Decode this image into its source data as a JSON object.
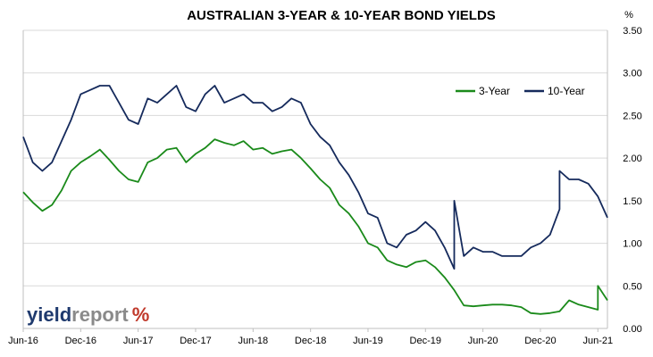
{
  "chart_data": {
    "type": "line",
    "title": "AUSTRALIAN 3-YEAR & 10-YEAR BOND YIELDS",
    "y_unit": "%",
    "ylim": [
      0,
      3.5
    ],
    "y_ticks": [
      "0.00",
      "0.50",
      "1.00",
      "1.50",
      "2.00",
      "2.50",
      "3.00",
      "3.50"
    ],
    "y_axis_side": "right",
    "grid": "horizontal",
    "xlim": [
      "2016-06",
      "2021-07"
    ],
    "x_ticks": [
      {
        "date": "2016-06",
        "label": "Jun-16"
      },
      {
        "date": "2016-12",
        "label": "Dec-16"
      },
      {
        "date": "2017-06",
        "label": "Jun-17"
      },
      {
        "date": "2017-12",
        "label": "Dec-17"
      },
      {
        "date": "2018-06",
        "label": "Jun-18"
      },
      {
        "date": "2018-12",
        "label": "Dec-18"
      },
      {
        "date": "2019-06",
        "label": "Jun-19"
      },
      {
        "date": "2019-12",
        "label": "Dec-19"
      },
      {
        "date": "2020-06",
        "label": "Jun-20"
      },
      {
        "date": "2020-12",
        "label": "Dec-20"
      },
      {
        "date": "2021-06",
        "label": "Jun-21"
      }
    ],
    "legend_position": "top-right",
    "series": [
      {
        "name": "3-Year",
        "color": "#1a8a1a",
        "points": [
          [
            "2016-06",
            1.6
          ],
          [
            "2016-07",
            1.48
          ],
          [
            "2016-08",
            1.38
          ],
          [
            "2016-09",
            1.45
          ],
          [
            "2016-10",
            1.62
          ],
          [
            "2016-11",
            1.85
          ],
          [
            "2016-12",
            1.95
          ],
          [
            "2017-01",
            2.02
          ],
          [
            "2017-02",
            2.1
          ],
          [
            "2017-03",
            1.98
          ],
          [
            "2017-04",
            1.85
          ],
          [
            "2017-05",
            1.75
          ],
          [
            "2017-06",
            1.72
          ],
          [
            "2017-07",
            1.95
          ],
          [
            "2017-08",
            2.0
          ],
          [
            "2017-09",
            2.1
          ],
          [
            "2017-10",
            2.12
          ],
          [
            "2017-11",
            1.95
          ],
          [
            "2017-12",
            2.05
          ],
          [
            "2018-01",
            2.12
          ],
          [
            "2018-02",
            2.22
          ],
          [
            "2018-03",
            2.18
          ],
          [
            "2018-04",
            2.15
          ],
          [
            "2018-05",
            2.2
          ],
          [
            "2018-06",
            2.1
          ],
          [
            "2018-07",
            2.12
          ],
          [
            "2018-08",
            2.05
          ],
          [
            "2018-09",
            2.08
          ],
          [
            "2018-10",
            2.1
          ],
          [
            "2018-11",
            2.0
          ],
          [
            "2018-12",
            1.88
          ],
          [
            "2019-01",
            1.75
          ],
          [
            "2019-02",
            1.65
          ],
          [
            "2019-03",
            1.45
          ],
          [
            "2019-04",
            1.35
          ],
          [
            "2019-05",
            1.2
          ],
          [
            "2019-06",
            1.0
          ],
          [
            "2019-07",
            0.95
          ],
          [
            "2019-08",
            0.8
          ],
          [
            "2019-09",
            0.75
          ],
          [
            "2019-10",
            0.72
          ],
          [
            "2019-11",
            0.78
          ],
          [
            "2019-12",
            0.8
          ],
          [
            "2020-01",
            0.72
          ],
          [
            "2020-02",
            0.6
          ],
          [
            "2020-03",
            0.45
          ],
          [
            "2020-04",
            0.27
          ],
          [
            "2020-05",
            0.26
          ],
          [
            "2020-06",
            0.27
          ],
          [
            "2020-07",
            0.28
          ],
          [
            "2020-08",
            0.28
          ],
          [
            "2020-09",
            0.27
          ],
          [
            "2020-10",
            0.25
          ],
          [
            "2020-11",
            0.18
          ],
          [
            "2020-12",
            0.17
          ],
          [
            "2021-01",
            0.18
          ],
          [
            "2021-02",
            0.2
          ],
          [
            "2021-03",
            0.33
          ],
          [
            "2021-04",
            0.28
          ],
          [
            "2021-05",
            0.25
          ],
          [
            "2021-06",
            0.22
          ],
          [
            "2021-06",
            0.5
          ],
          [
            "2021-07",
            0.33
          ]
        ]
      },
      {
        "name": "10-Year",
        "color": "#152a5c",
        "points": [
          [
            "2016-06",
            2.25
          ],
          [
            "2016-07",
            1.95
          ],
          [
            "2016-08",
            1.85
          ],
          [
            "2016-09",
            1.95
          ],
          [
            "2016-10",
            2.2
          ],
          [
            "2016-11",
            2.45
          ],
          [
            "2016-12",
            2.75
          ],
          [
            "2017-01",
            2.8
          ],
          [
            "2017-02",
            2.85
          ],
          [
            "2017-03",
            2.85
          ],
          [
            "2017-04",
            2.65
          ],
          [
            "2017-05",
            2.45
          ],
          [
            "2017-06",
            2.4
          ],
          [
            "2017-07",
            2.7
          ],
          [
            "2017-08",
            2.65
          ],
          [
            "2017-09",
            2.75
          ],
          [
            "2017-10",
            2.85
          ],
          [
            "2017-11",
            2.6
          ],
          [
            "2017-12",
            2.55
          ],
          [
            "2018-01",
            2.75
          ],
          [
            "2018-02",
            2.85
          ],
          [
            "2018-03",
            2.65
          ],
          [
            "2018-04",
            2.7
          ],
          [
            "2018-05",
            2.75
          ],
          [
            "2018-06",
            2.65
          ],
          [
            "2018-07",
            2.65
          ],
          [
            "2018-08",
            2.55
          ],
          [
            "2018-09",
            2.6
          ],
          [
            "2018-10",
            2.7
          ],
          [
            "2018-11",
            2.65
          ],
          [
            "2018-12",
            2.4
          ],
          [
            "2019-01",
            2.25
          ],
          [
            "2019-02",
            2.15
          ],
          [
            "2019-03",
            1.95
          ],
          [
            "2019-04",
            1.8
          ],
          [
            "2019-05",
            1.6
          ],
          [
            "2019-06",
            1.35
          ],
          [
            "2019-07",
            1.3
          ],
          [
            "2019-08",
            1.0
          ],
          [
            "2019-09",
            0.95
          ],
          [
            "2019-10",
            1.1
          ],
          [
            "2019-11",
            1.15
          ],
          [
            "2019-12",
            1.25
          ],
          [
            "2020-01",
            1.15
          ],
          [
            "2020-02",
            0.95
          ],
          [
            "2020-03",
            0.7
          ],
          [
            "2020-03",
            1.5
          ],
          [
            "2020-04",
            0.85
          ],
          [
            "2020-05",
            0.95
          ],
          [
            "2020-06",
            0.9
          ],
          [
            "2020-07",
            0.9
          ],
          [
            "2020-08",
            0.85
          ],
          [
            "2020-09",
            0.85
          ],
          [
            "2020-10",
            0.85
          ],
          [
            "2020-11",
            0.95
          ],
          [
            "2020-12",
            1.0
          ],
          [
            "2021-01",
            1.1
          ],
          [
            "2021-02",
            1.4
          ],
          [
            "2021-02",
            1.85
          ],
          [
            "2021-03",
            1.75
          ],
          [
            "2021-04",
            1.75
          ],
          [
            "2021-05",
            1.7
          ],
          [
            "2021-06",
            1.55
          ],
          [
            "2021-07",
            1.3
          ]
        ]
      }
    ]
  },
  "logo": {
    "part1": "yield",
    "part2": "report",
    "part3": "%",
    "color1": "#1f3a6e",
    "color2": "#8a8a8a"
  }
}
